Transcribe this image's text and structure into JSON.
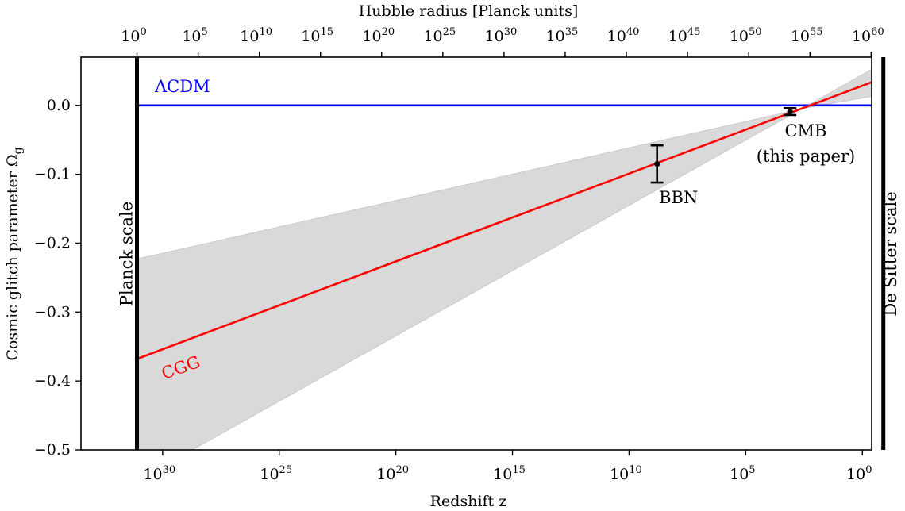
{
  "chart_data": {
    "type": "line",
    "xlabel": "Redshift z",
    "ylabel": "Cosmic glitch parameter Ω",
    "ylabel_subscript": "g",
    "top_xlabel": "Hubble radius [Planck units]",
    "x_scale": "log",
    "x_direction": "decreasing",
    "xlim_log10": [
      33.5,
      -0.4
    ],
    "ylim": [
      -0.5,
      0.07
    ],
    "bottom_ticks": [
      {
        "log10": 30,
        "base": "10",
        "exp": "30"
      },
      {
        "log10": 25,
        "base": "10",
        "exp": "25"
      },
      {
        "log10": 20,
        "base": "10",
        "exp": "20"
      },
      {
        "log10": 15,
        "base": "10",
        "exp": "15"
      },
      {
        "log10": 10,
        "base": "10",
        "exp": "10"
      },
      {
        "log10": 5,
        "base": "10",
        "exp": "5"
      },
      {
        "log10": 0,
        "base": "10",
        "exp": "0"
      }
    ],
    "top_ticks": [
      {
        "log10": 0,
        "base": "10",
        "exp": "0"
      },
      {
        "log10": 5,
        "base": "10",
        "exp": "5"
      },
      {
        "log10": 10,
        "base": "10",
        "exp": "10"
      },
      {
        "log10": 15,
        "base": "10",
        "exp": "15"
      },
      {
        "log10": 20,
        "base": "10",
        "exp": "20"
      },
      {
        "log10": 25,
        "base": "10",
        "exp": "25"
      },
      {
        "log10": 30,
        "base": "10",
        "exp": "30"
      },
      {
        "log10": 35,
        "base": "10",
        "exp": "35"
      },
      {
        "log10": 40,
        "base": "10",
        "exp": "40"
      },
      {
        "log10": 45,
        "base": "10",
        "exp": "45"
      },
      {
        "log10": 50,
        "base": "10",
        "exp": "50"
      },
      {
        "log10": 55,
        "base": "10",
        "exp": "55"
      },
      {
        "log10": 60,
        "base": "10",
        "exp": "60"
      }
    ],
    "top_axis_map": {
      "top_log10_at_planck": 0,
      "top_log10_at_desitter": 61
    },
    "yticks": [
      {
        "value": 0.0,
        "label": "0.0"
      },
      {
        "value": -0.1,
        "label": "−0.1"
      },
      {
        "value": -0.2,
        "label": "−0.2"
      },
      {
        "value": -0.3,
        "label": "−0.3"
      },
      {
        "value": -0.4,
        "label": "−0.4"
      },
      {
        "value": -0.5,
        "label": "−0.5"
      }
    ],
    "vertical_lines": [
      {
        "name": "Planck scale",
        "log10_z": 31.1
      },
      {
        "name": "De Sitter scale",
        "log10_z": -0.9
      }
    ],
    "series": [
      {
        "name": "ΛCDM",
        "color": "#0000ff",
        "points": [
          {
            "log10_z": 31.1,
            "y": 0.0
          },
          {
            "log10_z": -0.9,
            "y": 0.0
          }
        ]
      },
      {
        "name": "CGG",
        "color": "#ff0000",
        "points": [
          {
            "log10_z": 31.1,
            "y": -0.368
          },
          {
            "log10_z": -0.9,
            "y": 0.04
          }
        ]
      }
    ],
    "band": {
      "color": "#d9d9d9",
      "pivot": {
        "log10_z": 2.6,
        "y": -0.005
      },
      "upper_at_planck": -0.223,
      "lower_at_planck": -0.545,
      "upper_at_desitter": 0.062,
      "lower_at_desitter": 0.016
    },
    "error_points": [
      {
        "name": "BBN",
        "log10_z": 8.8,
        "y": -0.085,
        "yerr_low": 0.027,
        "yerr_high": 0.027
      },
      {
        "name": "CMB",
        "sublabel": "(this paper)",
        "log10_z": 3.1,
        "y": -0.009,
        "yerr_low": 0.005,
        "yerr_high": 0.005
      }
    ],
    "annotations": {
      "lcdm_label": "ΛCDM",
      "cgg_label": "CGG",
      "bbn_label": "BBN",
      "cmb_label": "CMB",
      "cmb_sublabel": "(this paper)",
      "planck_label": "Planck scale",
      "desitter_label": "De Sitter scale"
    },
    "colors": {
      "lcdm": "#0000ff",
      "cgg": "#ff0000",
      "band": "#d9d9d9",
      "axis": "#000000"
    }
  }
}
